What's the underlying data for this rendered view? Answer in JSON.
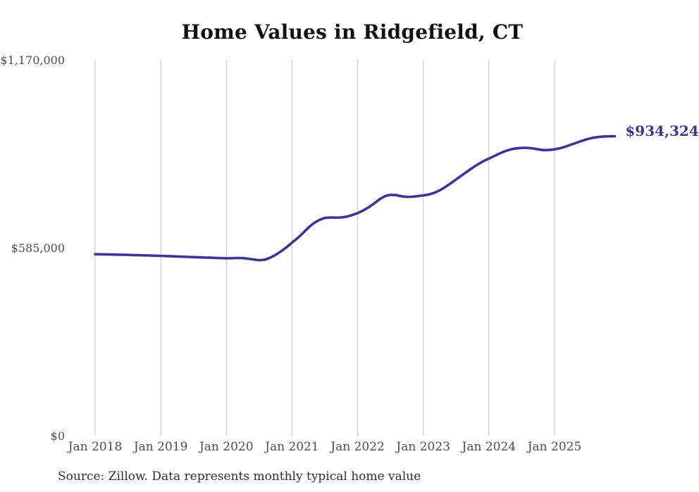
{
  "page": {
    "background": "#ffffff"
  },
  "source_note": "Source: Zillow. Data represents monthly typical home value",
  "chart_data": {
    "type": "line",
    "title": "Home Values in Ridgefield, CT",
    "x": {
      "start": "2018-01",
      "end": "2025-12",
      "interval": "monthly"
    },
    "x_tick_labels": [
      "Jan 2018",
      "Jan 2019",
      "Jan 2020",
      "Jan 2021",
      "Jan 2022",
      "Jan 2023",
      "Jan 2024",
      "Jan 2025"
    ],
    "x_tick_month_indices": [
      0,
      12,
      24,
      36,
      48,
      60,
      72,
      84
    ],
    "y_tick_labels": [
      "$0",
      "$585,000",
      "$1,170,000"
    ],
    "y_tick_values": [
      0,
      585000,
      1170000
    ],
    "ylim": [
      0,
      1170000
    ],
    "grid": "vertical-only",
    "legend": "none",
    "colors": {
      "line": "#3a3596",
      "grid": "#c4c4c4",
      "tick_text": "#4d4d4d",
      "title": "#111111",
      "annotation": "#3a3596",
      "source": "#2e2e2e"
    },
    "last_value": 934324,
    "last_value_label": "$934,324",
    "series": [
      {
        "name": "Typical home value",
        "values": [
          567000,
          566800,
          566500,
          566200,
          565800,
          565400,
          565000,
          564500,
          564000,
          563500,
          563000,
          562500,
          562000,
          561300,
          560600,
          560000,
          559300,
          558700,
          558000,
          557400,
          556800,
          556200,
          555600,
          555000,
          554500,
          554800,
          555500,
          555000,
          553000,
          550500,
          548500,
          550000,
          556000,
          565000,
          576000,
          589000,
          603000,
          617000,
          633000,
          650000,
          664000,
          674000,
          680000,
          681500,
          681000,
          681500,
          684000,
          689000,
          695000,
          703000,
          713000,
          725000,
          738000,
          748000,
          752000,
          751000,
          747500,
          745500,
          746000,
          748000,
          750000,
          753000,
          758000,
          766000,
          776000,
          787500,
          800000,
          812000,
          824000,
          836000,
          847000,
          857000,
          865000,
          873000,
          881000,
          888000,
          893500,
          896500,
          898000,
          898000,
          896500,
          893500,
          891000,
          891500,
          893500,
          897000,
          902000,
          908000,
          914000,
          920000,
          925500,
          929500,
          932000,
          933500,
          934000,
          934324
        ]
      }
    ]
  }
}
